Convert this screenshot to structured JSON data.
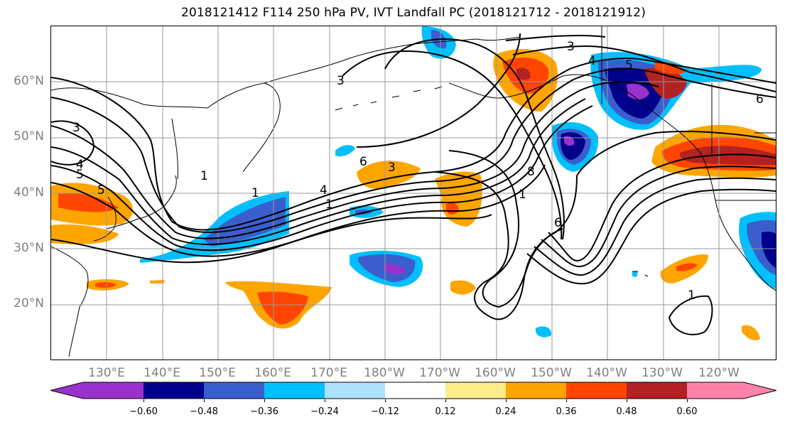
{
  "title": "2018121412 F114 250 hPa PV, IVT Landfall PC (2018121712 - 2018121912)",
  "map": {
    "lat_labels": [
      "60°N",
      "50°N",
      "40°N",
      "30°N",
      "20°N"
    ],
    "lon_labels": [
      "130°E",
      "140°E",
      "150°E",
      "160°E",
      "170°E",
      "180°W",
      "170°W",
      "160°W",
      "150°W",
      "140°W",
      "130°W",
      "120°W"
    ],
    "contour_labels": [
      "3",
      "4",
      "5",
      "5",
      "1",
      "1",
      "4",
      "1",
      "6",
      "3",
      "3",
      "1",
      "8",
      "6",
      "3",
      "4",
      "5",
      "6",
      "1"
    ],
    "contour_color": "#000000",
    "grid_color": "#999999",
    "coast_color": "#000000"
  },
  "colorbar": {
    "tick_labels": [
      "−0.60",
      "−0.48",
      "−0.36",
      "−0.24",
      "−0.12",
      "0.12",
      "0.24",
      "0.36",
      "0.48",
      "0.60"
    ],
    "colors": [
      "#9932CC",
      "#00008B",
      "#3A5FCD",
      "#00BFFF",
      "#B0E2FF",
      "#FFFFFF",
      "#FFEC8B",
      "#FFA500",
      "#FF4500",
      "#B22222",
      "#FF82AB"
    ]
  }
}
